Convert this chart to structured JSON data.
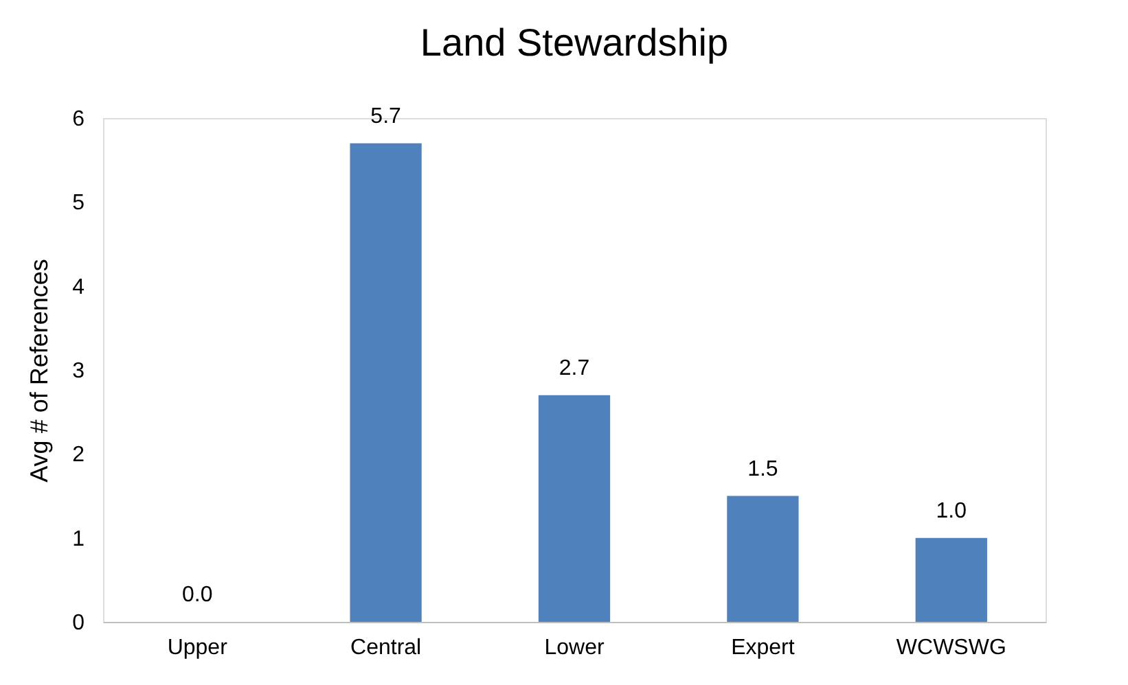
{
  "chart_data": {
    "type": "bar",
    "title": "Land Stewardship",
    "ylabel": "Avg # of References",
    "categories": [
      "Upper",
      "Central",
      "Lower",
      "Expert",
      "WCWSWG"
    ],
    "values": [
      0,
      5.7,
      2.7,
      1.5,
      1.0
    ],
    "value_labels": [
      "0.0",
      "5.7",
      "2.7",
      "1.5",
      "1.0"
    ],
    "color": "#4f81bd",
    "ylim": [
      0,
      6
    ],
    "yticks": [
      0,
      1,
      2,
      3,
      4,
      5,
      6
    ],
    "grid": false
  }
}
